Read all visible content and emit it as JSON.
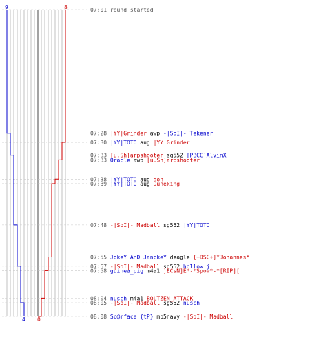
{
  "scale": {
    "start_seconds": 421,
    "end_seconds": 488
  },
  "teams": {
    "blue": {
      "color": "#0000cc",
      "start_count": "9",
      "end_count": "4"
    },
    "red": {
      "color": "#cc0000",
      "start_count": "8",
      "end_count": "0"
    }
  },
  "colors": {
    "time": "#555555",
    "neutral": "#000000",
    "row_line": "#c8c8c8",
    "grid_line": "#999999"
  },
  "events": [
    {
      "time": "07:01",
      "seconds": 421,
      "killer": "",
      "killer_team": "",
      "weapon": "round started",
      "victim": "",
      "victim_team": ""
    },
    {
      "time": "07:28",
      "seconds": 448,
      "killer": "|YY|Grinder",
      "killer_team": "red",
      "weapon": "awp",
      "victim": "-|SoI|- Tekener",
      "victim_team": "blue"
    },
    {
      "time": "07:30",
      "seconds": 450,
      "killer": "|YY|TOTO",
      "killer_team": "blue",
      "weapon": "aug",
      "victim": "|YY|Grinder",
      "victim_team": "red"
    },
    {
      "time": "07:33",
      "seconds": 452.8,
      "killer": "[u.Sh]arpshooter",
      "killer_team": "red",
      "weapon": "sg552",
      "victim": "[PBCC]AlvinX",
      "victim_team": "blue"
    },
    {
      "time": "07:33",
      "seconds": 453.8,
      "killer": "Oracle",
      "killer_team": "blue",
      "weapon": "awp",
      "victim": "[u.Sh]arpshooter",
      "victim_team": "red"
    },
    {
      "time": "07:38",
      "seconds": 458,
      "killer": "|YY|TOTO",
      "killer_team": "blue",
      "weapon": "aug",
      "victim": "don",
      "victim_team": "red"
    },
    {
      "time": "07:39",
      "seconds": 459,
      "killer": "|YY|TOTO",
      "killer_team": "blue",
      "weapon": "aug",
      "victim": "Duneking",
      "victim_team": "red"
    },
    {
      "time": "07:48",
      "seconds": 468,
      "killer": "-|SoI|- Madball",
      "killer_team": "red",
      "weapon": "sg552",
      "victim": "|YY|TOTO",
      "victim_team": "blue"
    },
    {
      "time": "07:55",
      "seconds": 475,
      "killer": "JokeY AnD JanckeY",
      "killer_team": "blue",
      "weapon": "deagle",
      "victim": "[+DSC+]*Johannes*",
      "victim_team": "red"
    },
    {
      "time": "07:57",
      "seconds": 477,
      "killer": "-|SoI|- Madball",
      "killer_team": "red",
      "weapon": "sg552",
      "victim": "hollow j",
      "victim_team": "blue"
    },
    {
      "time": "07:58",
      "seconds": 478,
      "killer": "guinea_pig",
      "killer_team": "blue",
      "weapon": "m4a1",
      "victim": "]ECsN]E*-*Spow*-*[RIP][",
      "victim_team": "red"
    },
    {
      "time": "08:04",
      "seconds": 484,
      "killer": "nusch",
      "killer_team": "blue",
      "weapon": "m4a1",
      "victim": "BOLTZEN_ATTACK",
      "victim_team": "red"
    },
    {
      "time": "08:05",
      "seconds": 485,
      "killer": "-|SoI|- Madball",
      "killer_team": "red",
      "weapon": "sg552",
      "victim": "nusch",
      "victim_team": "blue"
    },
    {
      "time": "08:08",
      "seconds": 488,
      "killer": "Sc@rface {tP}",
      "killer_team": "blue",
      "weapon": "mp5navy",
      "victim": "-|SoI|- Madball",
      "victim_team": "red"
    }
  ]
}
